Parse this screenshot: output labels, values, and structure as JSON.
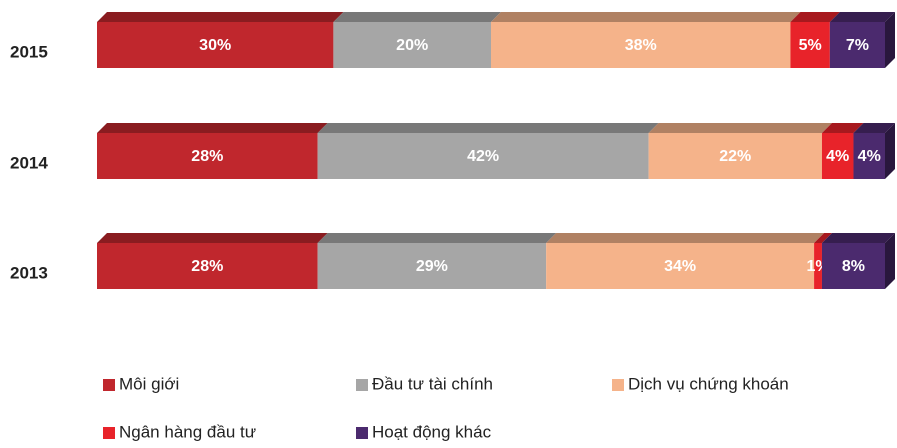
{
  "chart_data": {
    "type": "bar",
    "stacked": true,
    "orientation": "horizontal",
    "categories": [
      "2015",
      "2014",
      "2013"
    ],
    "series": [
      {
        "name": "Môi giới",
        "color": "#c0272d",
        "values": [
          30,
          28,
          28
        ],
        "value_labels": [
          "30%",
          "28%",
          "28%"
        ]
      },
      {
        "name": "Đầu tư tài chính",
        "color": "#a6a6a6",
        "values": [
          20,
          42,
          29
        ],
        "value_labels": [
          "20%",
          "42%",
          "29%"
        ]
      },
      {
        "name": "Dịch vụ chứng khoán",
        "color": "#f5b38a",
        "values": [
          38,
          22,
          34
        ],
        "value_labels": [
          "38%",
          "22%",
          "34%"
        ]
      },
      {
        "name": "Ngân hàng đầu tư",
        "color": "#e8232a",
        "values": [
          5,
          4,
          1
        ],
        "value_labels": [
          "5%",
          "4%",
          "1%"
        ]
      },
      {
        "name": "Hoạt động khác",
        "color": "#4b2a6e",
        "values": [
          7,
          4,
          8
        ],
        "value_labels": [
          "7%",
          "4%",
          "8%"
        ]
      }
    ],
    "xlim": [
      0,
      100
    ]
  }
}
